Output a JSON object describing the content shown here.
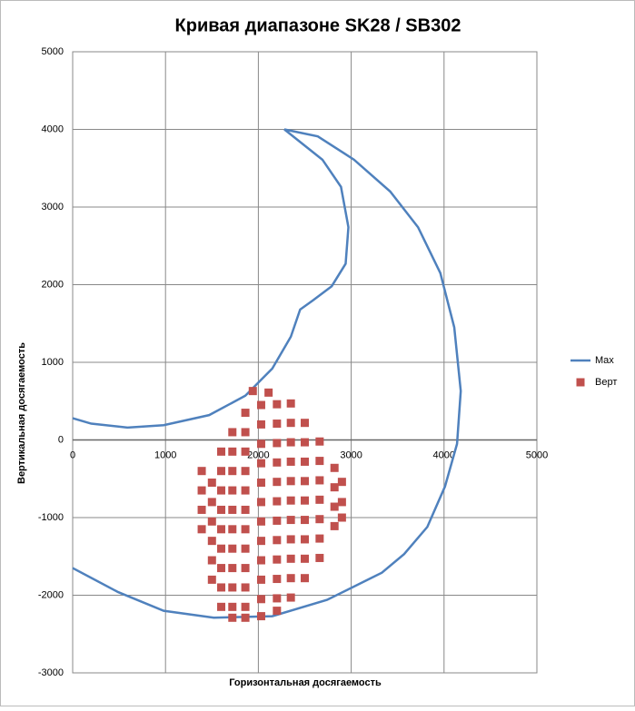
{
  "chart_data": {
    "type": "scatter",
    "title": "Кривая диапазоне SK28 / SB302",
    "x_label": "Горизонтальная  досягаемость",
    "y_label": "Вертикальная  досягаемость",
    "xlim": [
      0,
      5000
    ],
    "xticks": [
      0,
      1000,
      2000,
      3000,
      4000,
      5000
    ],
    "ylim": [
      -3000,
      5000
    ],
    "yticks": [
      -3000,
      -2000,
      -1000,
      0,
      1000,
      2000,
      3000,
      4000,
      5000
    ],
    "grid": true,
    "legend": "right",
    "series": [
      {
        "name": "Max",
        "style": "line",
        "color": "#4f81bd",
        "x": [
          0,
          490,
          980,
          1520,
          2150,
          2740,
          3330,
          3570,
          3820,
          4010,
          4140,
          4180,
          4110,
          3960,
          3720,
          3420,
          3030,
          2640,
          2280,
          2690,
          2890,
          2970,
          2940,
          2790,
          2590,
          2450,
          2350,
          2150,
          1860,
          1470,
          980,
          590,
          200,
          0
        ],
        "values": [
          -1650,
          -1960,
          -2200,
          -2290,
          -2270,
          -2060,
          -1710,
          -1470,
          -1120,
          -600,
          -50,
          630,
          1450,
          2150,
          2740,
          3200,
          3610,
          3910,
          4000,
          3610,
          3260,
          2740,
          2270,
          1980,
          1800,
          1680,
          1330,
          920,
          570,
          320,
          190,
          160,
          210,
          280
        ]
      },
      {
        "name": "Верт",
        "style": "marker",
        "color": "#c0504d",
        "x": [
          1390,
          1390,
          1390,
          1390,
          1500,
          1500,
          1500,
          1500,
          1500,
          1500,
          1600,
          1600,
          1600,
          1600,
          1600,
          1600,
          1600,
          1600,
          1600,
          1720,
          1720,
          1720,
          1720,
          1720,
          1720,
          1720,
          1720,
          1720,
          1720,
          1720,
          1860,
          1860,
          1860,
          1860,
          1860,
          1860,
          1860,
          1860,
          1860,
          1860,
          1860,
          1860,
          1940,
          2030,
          2030,
          2030,
          2030,
          2030,
          2030,
          2030,
          2030,
          2030,
          2030,
          2030,
          2030,
          2110,
          2200,
          2200,
          2200,
          2200,
          2200,
          2200,
          2200,
          2200,
          2200,
          2200,
          2200,
          2200,
          2350,
          2350,
          2350,
          2350,
          2350,
          2350,
          2350,
          2350,
          2350,
          2350,
          2350,
          2500,
          2500,
          2500,
          2500,
          2500,
          2500,
          2500,
          2500,
          2500,
          2660,
          2660,
          2660,
          2660,
          2660,
          2660,
          2660,
          2820,
          2820,
          2820,
          2820,
          2900,
          2900,
          2900
        ],
        "values": [
          -400,
          -650,
          -900,
          -1150,
          -550,
          -800,
          -1050,
          -1300,
          -1550,
          -1800,
          -150,
          -400,
          -650,
          -900,
          -1150,
          -1400,
          -1650,
          -1900,
          -2150,
          100,
          -150,
          -400,
          -650,
          -900,
          -1150,
          -1400,
          -1650,
          -1900,
          -2150,
          -2290,
          350,
          100,
          -150,
          -400,
          -650,
          -900,
          -1150,
          -1400,
          -1650,
          -1900,
          -2150,
          -2290,
          630,
          450,
          200,
          -50,
          -300,
          -550,
          -800,
          -1050,
          -1300,
          -1550,
          -1800,
          -2050,
          -2270,
          610,
          460,
          210,
          -40,
          -290,
          -540,
          -790,
          -1040,
          -1290,
          -1540,
          -1790,
          -2040,
          -2200,
          470,
          220,
          -30,
          -280,
          -530,
          -780,
          -1030,
          -1280,
          -1530,
          -1780,
          -2030,
          220,
          -30,
          -280,
          -530,
          -780,
          -1030,
          -1280,
          -1530,
          -1780,
          -20,
          -270,
          -520,
          -770,
          -1020,
          -1270,
          -1520,
          -360,
          -610,
          -860,
          -1110,
          -540,
          -800,
          -1000
        ]
      }
    ]
  }
}
